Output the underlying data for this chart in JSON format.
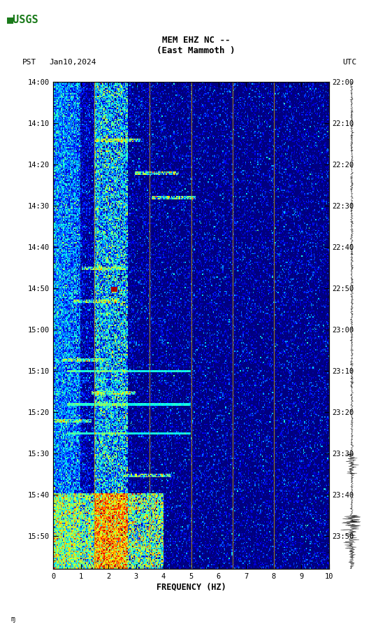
{
  "title_line1": "MEM EHZ NC --",
  "title_line2": "(East Mammoth )",
  "date_label": "Jan10,2024",
  "left_tz": "PST",
  "right_tz": "UTC",
  "freq_min": 0,
  "freq_max": 10,
  "n_time_minutes": 118,
  "yticks_pst": [
    "14:00",
    "14:10",
    "14:20",
    "14:30",
    "14:40",
    "14:50",
    "15:00",
    "15:10",
    "15:20",
    "15:30",
    "15:40",
    "15:50"
  ],
  "yticks_utc": [
    "22:00",
    "22:10",
    "22:20",
    "22:30",
    "22:40",
    "22:50",
    "23:00",
    "23:10",
    "23:20",
    "23:30",
    "23:40",
    "23:50"
  ],
  "ytick_positions": [
    0,
    10,
    20,
    30,
    40,
    50,
    60,
    70,
    80,
    90,
    100,
    110
  ],
  "xticks": [
    0,
    1,
    2,
    3,
    4,
    5,
    6,
    7,
    8,
    9,
    10
  ],
  "xlabel": "FREQUENCY (HZ)",
  "bg_color": "#ffffff",
  "vertical_lines_freq": [
    1.5,
    3.5,
    5.0,
    6.5,
    8.0
  ],
  "vline_color": "#c8a000",
  "spectrogram_seed": 7,
  "waveform_seed": 42,
  "cmap_vmin": -1.2,
  "cmap_vmax": 0.8
}
